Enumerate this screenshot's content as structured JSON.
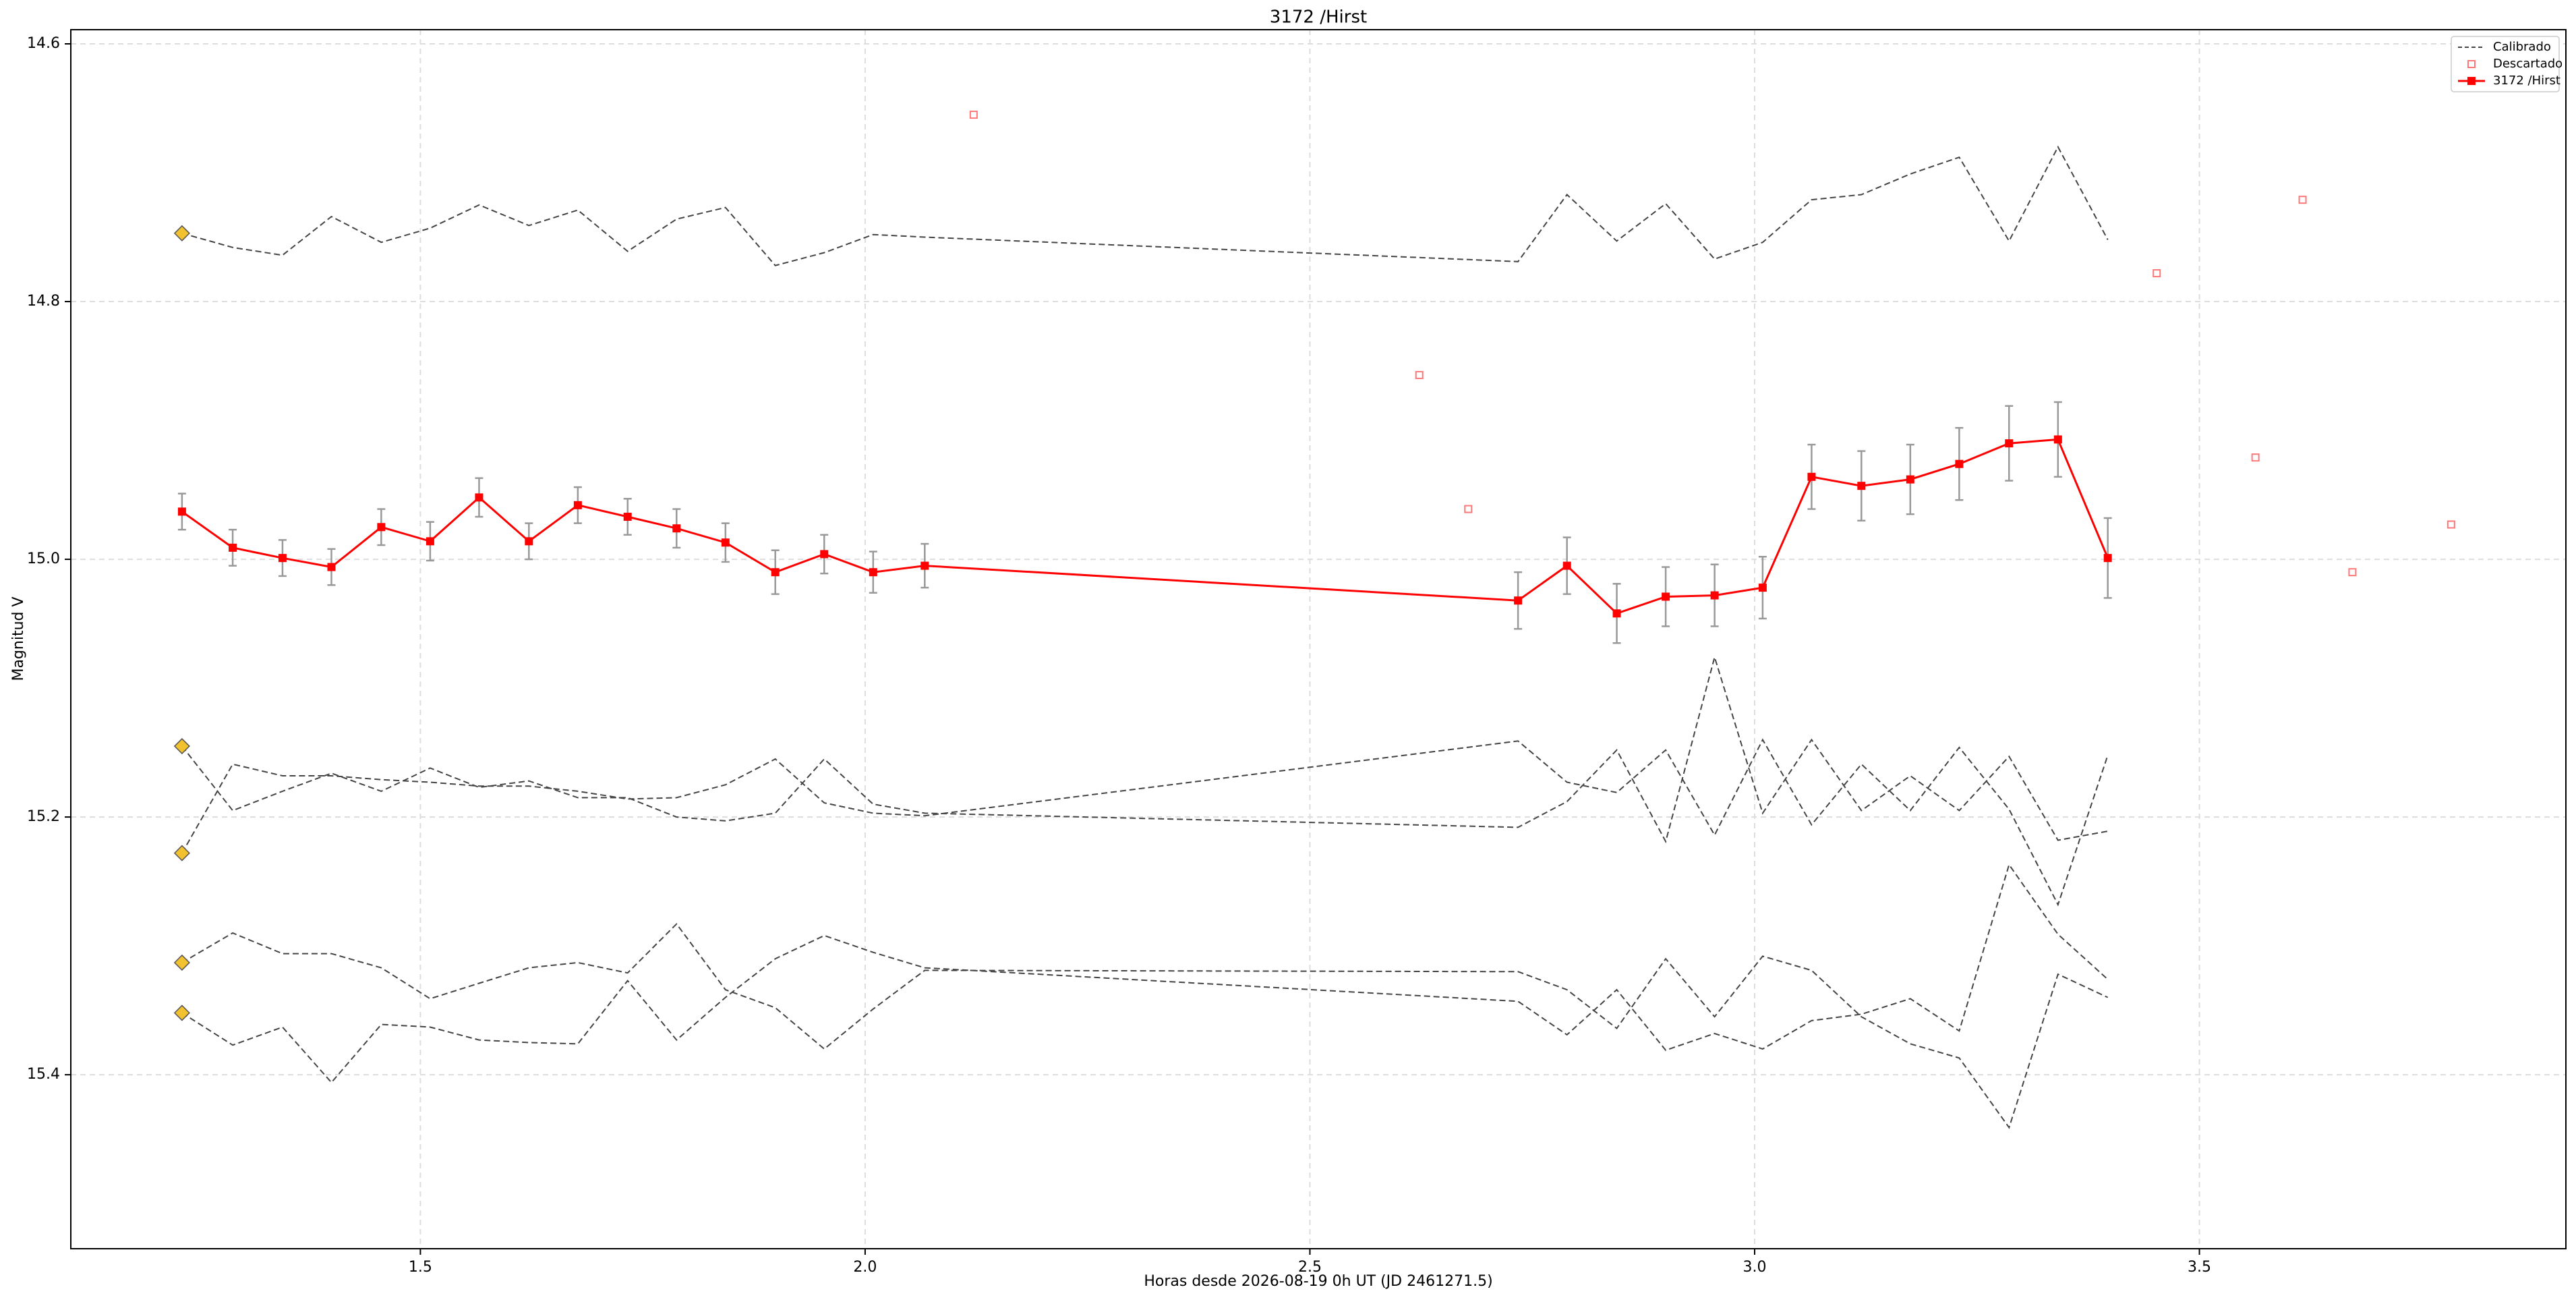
{
  "chart_data": {
    "type": "line",
    "title": "3172 /Hirst",
    "xlabel": "Horas desde 2026-08-19 0h UT (JD 2461271.5)",
    "ylabel": "Magnitud V",
    "xlim": [
      1.107,
      3.912
    ],
    "ylim": [
      14.589,
      15.535
    ],
    "y_inverted": true,
    "grid": true,
    "legend_loc": "upper right",
    "xticks": [
      1.5,
      {
        "value": 2,
        "label": "2.0"
      },
      2.5,
      {
        "value": 3,
        "label": "3.0"
      },
      3.5
    ],
    "yticks": [
      14.6,
      14.8,
      {
        "value": 15,
        "label": "15.0"
      },
      15.2,
      15.4
    ],
    "x": [
      1.232,
      1.289,
      1.345,
      1.4,
      1.456,
      1.511,
      1.566,
      1.622,
      1.677,
      1.733,
      1.788,
      1.843,
      1.899,
      1.954,
      2.009,
      2.067,
      2.734,
      2.789,
      2.845,
      2.9,
      2.955,
      3.009,
      3.064,
      3.12,
      3.175,
      3.23,
      3.286,
      3.341,
      3.397
    ],
    "calibrated": {
      "name": "Calibrado",
      "color": "#444444",
      "marker_color": "#f2c12e",
      "lines": [
        [
          14.747,
          14.758,
          14.764,
          14.734,
          14.754,
          14.743,
          14.725,
          14.741,
          14.729,
          14.761,
          14.736,
          14.727,
          14.772,
          14.762,
          14.748,
          14.75,
          14.769,
          14.717,
          14.753,
          14.724,
          14.767,
          14.754,
          14.721,
          14.717,
          14.701,
          14.688,
          14.753,
          14.68,
          14.752
        ],
        [
          15.145,
          15.195,
          15.18,
          15.166,
          15.18,
          15.162,
          15.177,
          15.172,
          15.185,
          15.185,
          15.2,
          15.203,
          15.197,
          15.155,
          15.19,
          15.197,
          15.208,
          15.188,
          15.148,
          15.219,
          15.076,
          15.197,
          15.14,
          15.195,
          15.168,
          15.195,
          15.153,
          15.218,
          15.211
        ],
        [
          15.228,
          15.159,
          15.168,
          15.168,
          15.171,
          15.173,
          15.176,
          15.176,
          15.18,
          15.186,
          15.185,
          15.175,
          15.155,
          15.189,
          15.197,
          15.199,
          15.141,
          15.173,
          15.181,
          15.148,
          15.214,
          15.14,
          15.206,
          15.159,
          15.195,
          15.146,
          15.194,
          15.268,
          15.152
        ],
        [
          15.313,
          15.29,
          15.306,
          15.306,
          15.317,
          15.341,
          15.329,
          15.317,
          15.313,
          15.321,
          15.283,
          15.334,
          15.348,
          15.38,
          15.349,
          15.319,
          15.32,
          15.334,
          15.364,
          15.31,
          15.355,
          15.308,
          15.319,
          15.355,
          15.376,
          15.387,
          15.441,
          15.322,
          15.34
        ],
        [
          15.352,
          15.377,
          15.363,
          15.406,
          15.361,
          15.363,
          15.373,
          15.375,
          15.376,
          15.327,
          15.373,
          15.34,
          15.31,
          15.292,
          15.305,
          15.317,
          15.343,
          15.369,
          15.334,
          15.381,
          15.368,
          15.38,
          15.358,
          15.353,
          15.341,
          15.366,
          15.237,
          15.291,
          15.326
        ]
      ]
    },
    "discarded": {
      "name": "Descartado",
      "color": "#ff7777",
      "x": [
        2.122,
        2.623,
        2.678,
        3.452,
        3.563,
        3.616,
        3.672,
        3.783
      ],
      "values": [
        14.655,
        14.857,
        14.961,
        14.778,
        14.921,
        14.721,
        15.01,
        14.973
      ]
    },
    "series": [
      {
        "name": "3172 /Hirst",
        "color": "#ff0000",
        "error_color": "#999999",
        "values": [
          14.963,
          14.991,
          14.999,
          15.006,
          14.975,
          14.986,
          14.952,
          14.986,
          14.958,
          14.967,
          14.976,
          14.987,
          15.01,
          14.996,
          15.01,
          15.005,
          15.032,
          15.005,
          15.042,
          15.029,
          15.028,
          15.022,
          14.936,
          14.943,
          14.938,
          14.926,
          14.91,
          14.907,
          14.999
        ],
        "errors": [
          0.014,
          0.014,
          0.014,
          0.014,
          0.014,
          0.015,
          0.015,
          0.014,
          0.014,
          0.014,
          0.015,
          0.015,
          0.017,
          0.015,
          0.016,
          0.017,
          0.022,
          0.022,
          0.023,
          0.023,
          0.024,
          0.024,
          0.025,
          0.027,
          0.027,
          0.028,
          0.029,
          0.029,
          0.031
        ]
      }
    ]
  }
}
